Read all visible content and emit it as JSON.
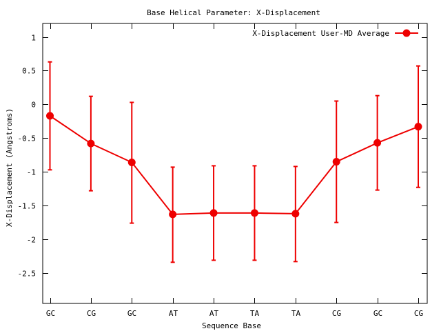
{
  "chart_data": {
    "type": "line",
    "title": "Base  Helical Parameter: X-Displacement",
    "xlabel": "Sequence Base",
    "ylabel": "X-Displacement (Angstroms)",
    "categories": [
      "GC",
      "CG",
      "GC",
      "AT",
      "AT",
      "TA",
      "TA",
      "CG",
      "GC",
      "CG"
    ],
    "ylim": [
      -2.95,
      1.2
    ],
    "yticks": [
      1,
      0.5,
      0,
      -0.5,
      -1,
      -1.5,
      -2,
      -2.5
    ],
    "ytick_labels": [
      "1",
      "0.5",
      "0",
      "-0.5",
      "-1",
      "-1.5",
      "-2",
      "-2.5"
    ],
    "grid": false,
    "legend_position": "top-right",
    "series": [
      {
        "name": "X-Displacement User-MD Average",
        "color": "#ee0000",
        "marker": "circle",
        "values": [
          -0.17,
          -0.58,
          -0.86,
          -1.63,
          -1.61,
          -1.61,
          -1.62,
          -0.85,
          -0.57,
          -0.33
        ],
        "error_low": [
          -0.97,
          -1.28,
          -1.76,
          -2.34,
          -2.31,
          -2.31,
          -2.33,
          -1.75,
          -1.27,
          -1.23
        ],
        "error_high": [
          0.63,
          0.12,
          0.03,
          -0.93,
          -0.91,
          -0.91,
          -0.92,
          0.05,
          0.13,
          0.57
        ]
      }
    ]
  }
}
